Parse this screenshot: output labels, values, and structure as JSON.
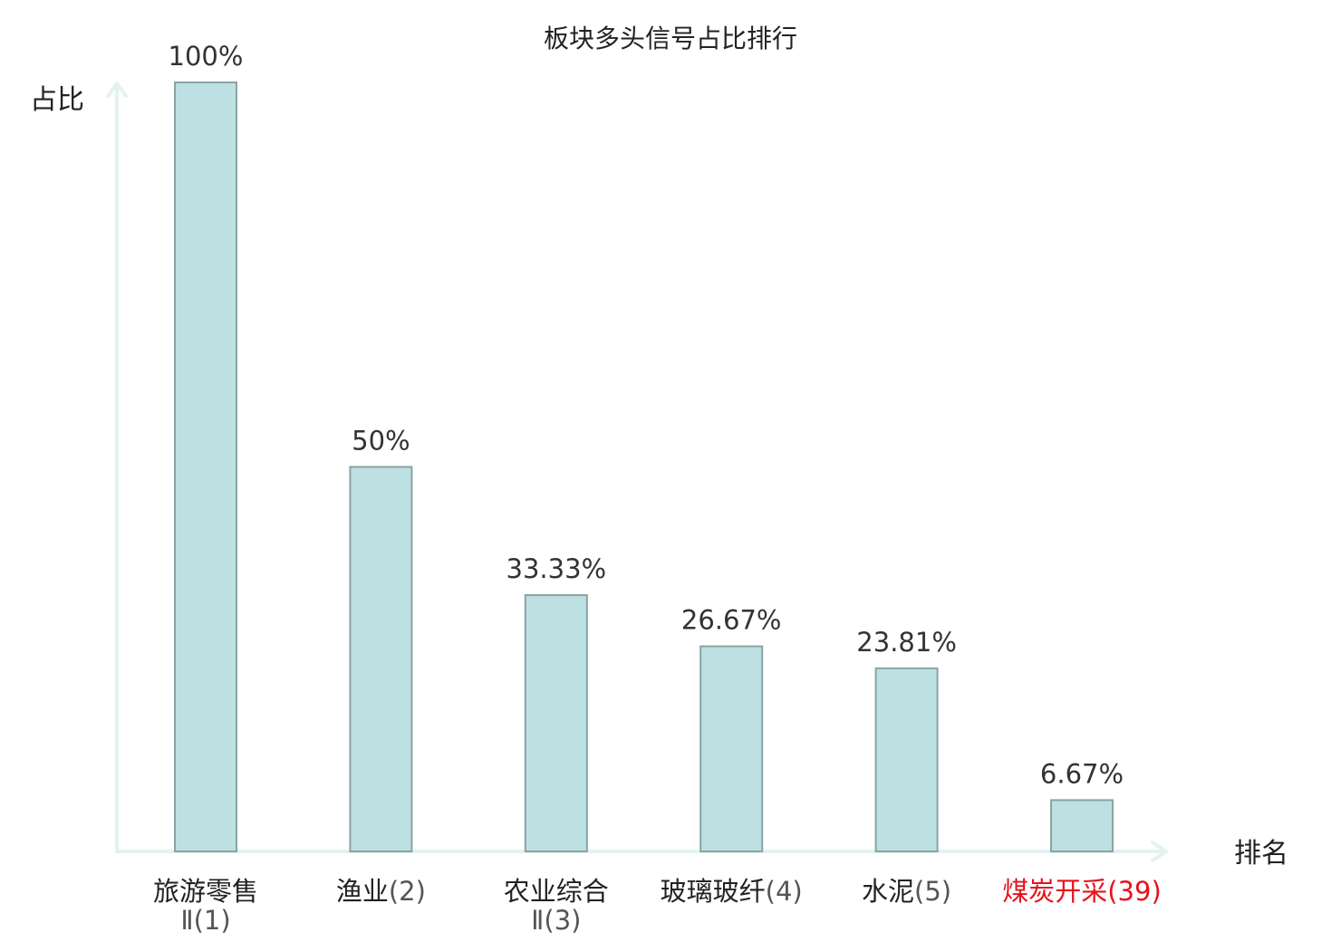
{
  "chart_data": {
    "type": "bar",
    "title": "板块多头信号占比排行",
    "xlabel": "排名",
    "ylabel": "占比",
    "ylim": [
      0,
      100
    ],
    "grid": false,
    "legend": "none",
    "bar_color": "#bde0e2",
    "bar_stroke_color": "#8aa3a7",
    "axis_color": "#e3f3f0",
    "text_color": "#222222",
    "rank_color": "#555555",
    "highlight_color": "#e6131a",
    "categories": [
      {
        "lines": [
          "旅游零售",
          "Ⅱ"
        ],
        "rank": "(1)",
        "highlight": false
      },
      {
        "lines": [
          "渔业"
        ],
        "rank": "(2)",
        "highlight": false
      },
      {
        "lines": [
          "农业综合",
          "Ⅱ"
        ],
        "rank": "(3)",
        "highlight": false
      },
      {
        "lines": [
          "玻璃玻纤"
        ],
        "rank": "(4)",
        "highlight": false
      },
      {
        "lines": [
          "水泥"
        ],
        "rank": "(5)",
        "highlight": false
      },
      {
        "lines": [
          "煤炭开采"
        ],
        "rank": "(39)",
        "highlight": true
      }
    ],
    "values": [
      100,
      50,
      33.33,
      26.67,
      23.81,
      6.67
    ],
    "data_labels": [
      "100%",
      "50%",
      "33.33%",
      "26.67%",
      "23.81%",
      "6.67%"
    ]
  }
}
